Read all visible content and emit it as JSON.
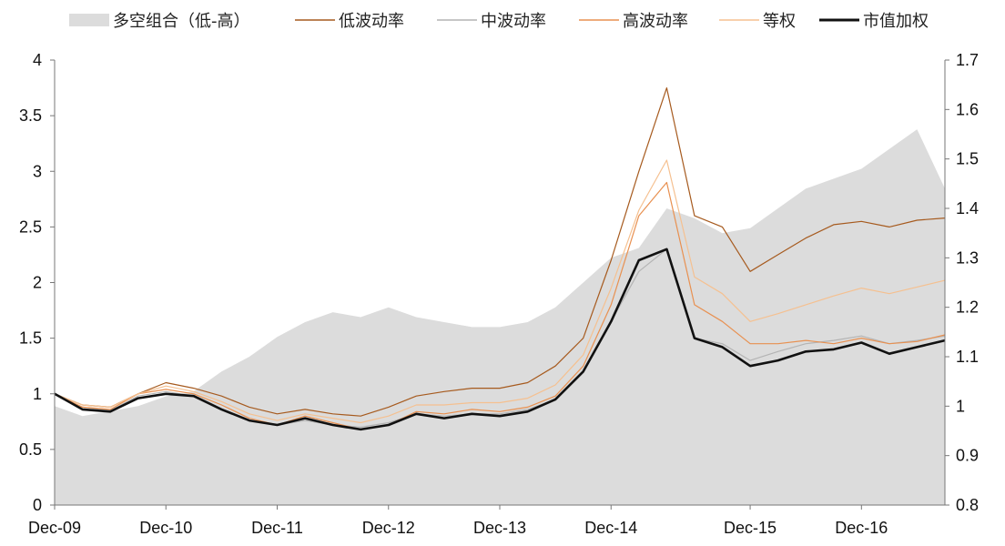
{
  "chart_data": {
    "type": "line",
    "title": "",
    "xlabel": "",
    "ylabel": "",
    "x_ticks": [
      "Dec-09",
      "Dec-10",
      "Dec-11",
      "Dec-12",
      "Dec-13",
      "Dec-14",
      "Dec-15",
      "Dec-16"
    ],
    "x": [
      "Dec-09",
      "Mar-10",
      "Jun-10",
      "Sep-10",
      "Dec-10",
      "Mar-11",
      "Jun-11",
      "Sep-11",
      "Dec-11",
      "Mar-12",
      "Jun-12",
      "Sep-12",
      "Dec-12",
      "Mar-13",
      "Jun-13",
      "Sep-13",
      "Dec-13",
      "Mar-14",
      "Jun-14",
      "Sep-14",
      "Dec-14",
      "Mar-15",
      "Jun-15",
      "Jul-15",
      "Sep-15",
      "Dec-15",
      "Mar-16",
      "Jun-16",
      "Sep-16",
      "Dec-16",
      "Mar-17",
      "Jun-17",
      "Sep-17"
    ],
    "y_left_ticks": [
      "0",
      "0.5",
      "1",
      "1.5",
      "2",
      "2.5",
      "3",
      "3.5",
      "4"
    ],
    "y_right_ticks": [
      "0.8",
      "0.9",
      "1",
      "1.1",
      "1.2",
      "1.3",
      "1.4",
      "1.5",
      "1.6",
      "1.7"
    ],
    "y_left_range": [
      0,
      4
    ],
    "y_right_range": [
      0.8,
      1.7
    ],
    "grid": false,
    "legend_position": "top",
    "series": [
      {
        "name": "多空组合（低-高）",
        "axis": "right",
        "style": "area",
        "color": "#dcdcdc",
        "values": [
          1.0,
          0.98,
          0.99,
          1.0,
          1.02,
          1.03,
          1.07,
          1.1,
          1.14,
          1.17,
          1.19,
          1.18,
          1.2,
          1.18,
          1.17,
          1.16,
          1.16,
          1.17,
          1.2,
          1.25,
          1.3,
          1.32,
          1.4,
          1.38,
          1.35,
          1.36,
          1.4,
          1.44,
          1.46,
          1.48,
          1.52,
          1.56,
          1.44
        ]
      },
      {
        "name": "低波动率",
        "axis": "left",
        "style": "line",
        "color": "#a65a1e",
        "values": [
          1.0,
          0.9,
          0.88,
          1.0,
          1.1,
          1.05,
          0.98,
          0.88,
          0.82,
          0.86,
          0.82,
          0.8,
          0.88,
          0.98,
          1.02,
          1.05,
          1.05,
          1.1,
          1.25,
          1.5,
          2.2,
          3.0,
          3.75,
          2.6,
          2.5,
          2.1,
          2.25,
          2.4,
          2.52,
          2.55,
          2.5,
          2.56,
          2.58
        ]
      },
      {
        "name": "中波动率",
        "axis": "left",
        "style": "line",
        "color": "#b4b4b4",
        "values": [
          1.0,
          0.88,
          0.85,
          0.98,
          1.02,
          0.98,
          0.86,
          0.76,
          0.72,
          0.76,
          0.72,
          0.7,
          0.74,
          0.82,
          0.8,
          0.82,
          0.82,
          0.86,
          0.95,
          1.2,
          1.65,
          2.1,
          2.3,
          1.5,
          1.45,
          1.3,
          1.38,
          1.45,
          1.48,
          1.52,
          1.45,
          1.48,
          1.52
        ]
      },
      {
        "name": "高波动率",
        "axis": "left",
        "style": "line",
        "color": "#e89050",
        "values": [
          1.0,
          0.88,
          0.86,
          1.0,
          1.04,
          1.0,
          0.9,
          0.78,
          0.72,
          0.8,
          0.74,
          0.68,
          0.72,
          0.84,
          0.82,
          0.86,
          0.84,
          0.88,
          0.98,
          1.25,
          1.8,
          2.6,
          2.9,
          1.8,
          1.65,
          1.45,
          1.45,
          1.48,
          1.45,
          1.5,
          1.45,
          1.47,
          1.53
        ]
      },
      {
        "name": "等权",
        "axis": "left",
        "style": "line",
        "color": "#f5c090",
        "values": [
          1.0,
          0.9,
          0.88,
          1.0,
          1.07,
          1.02,
          0.93,
          0.82,
          0.76,
          0.82,
          0.78,
          0.74,
          0.8,
          0.9,
          0.9,
          0.92,
          0.92,
          0.96,
          1.08,
          1.35,
          1.95,
          2.65,
          3.1,
          2.05,
          1.9,
          1.65,
          1.72,
          1.8,
          1.88,
          1.95,
          1.9,
          1.96,
          2.02
        ]
      },
      {
        "name": "市值加权",
        "axis": "left",
        "style": "line",
        "color": "#111111",
        "values": [
          1.0,
          0.86,
          0.84,
          0.96,
          1.0,
          0.98,
          0.86,
          0.76,
          0.72,
          0.78,
          0.72,
          0.68,
          0.72,
          0.82,
          0.78,
          0.82,
          0.8,
          0.84,
          0.95,
          1.2,
          1.65,
          2.2,
          2.3,
          1.5,
          1.42,
          1.25,
          1.3,
          1.38,
          1.4,
          1.46,
          1.36,
          1.42,
          1.48
        ]
      }
    ]
  }
}
